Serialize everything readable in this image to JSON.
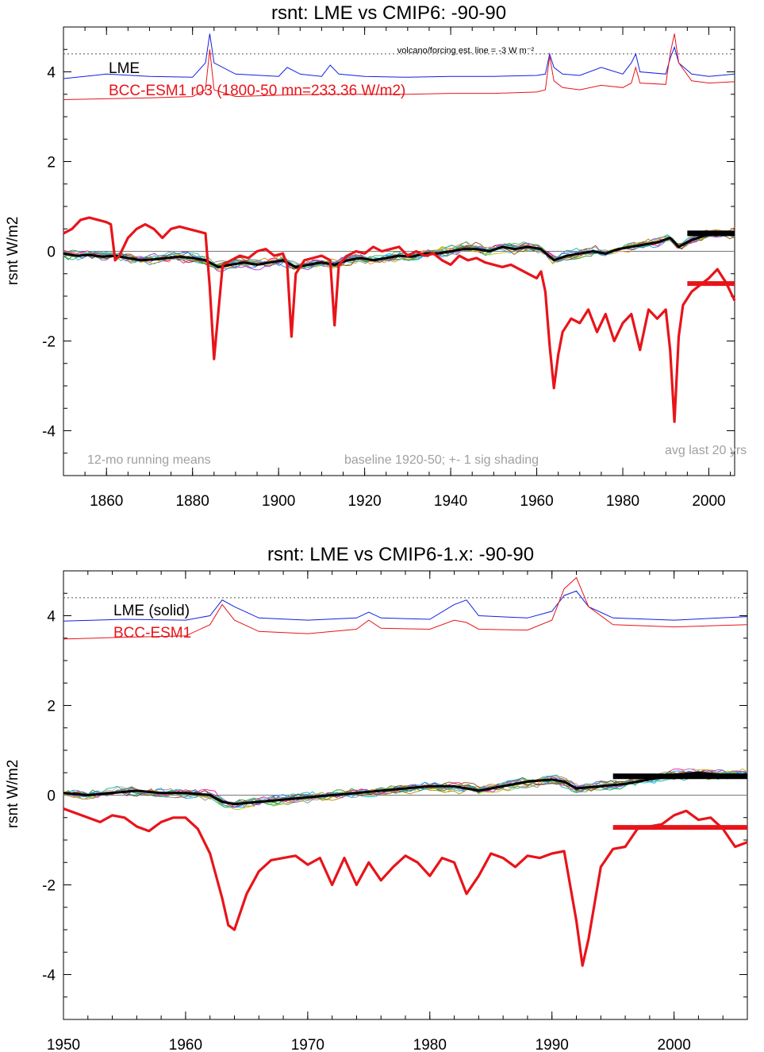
{
  "chart_data": [
    {
      "type": "line",
      "title": "rsnt: LME vs CMIP6: -90-90",
      "ylabel": "rsnt W/m2",
      "xlabel": "",
      "xlim": [
        1850,
        2006
      ],
      "ylim": [
        -5,
        5
      ],
      "xticks": [
        1860,
        1880,
        1900,
        1920,
        1940,
        1960,
        1980,
        2000
      ],
      "yticks": [
        -4,
        -2,
        0,
        2,
        4
      ],
      "grid": false,
      "zero_line": 0,
      "dotted_reference_line": 4.4,
      "legend": [
        {
          "label": "LME",
          "color": "#000000"
        },
        {
          "label": "BCC-ESM1  r03 (1800-50 mn=233.36 W/m2)",
          "color": "#e8141a"
        }
      ],
      "annotations": {
        "forcing_note": "volcano/forcing est.      line = -3 W m⁻²",
        "bottom_left": "12-mo running means",
        "bottom_center": "baseline 1920-50; +- 1 sig shading",
        "bottom_right": "avg last 20 yrs"
      },
      "series": [
        {
          "name": "LME",
          "color": "#000000",
          "x": [
            1850,
            1853,
            1856,
            1859,
            1862,
            1865,
            1868,
            1871,
            1874,
            1877,
            1880,
            1883,
            1886,
            1889,
            1892,
            1895,
            1898,
            1901,
            1904,
            1907,
            1910,
            1913,
            1916,
            1919,
            1922,
            1925,
            1928,
            1931,
            1934,
            1937,
            1940,
            1943,
            1946,
            1949,
            1952,
            1955,
            1958,
            1961,
            1964,
            1967,
            1970,
            1973,
            1976,
            1979,
            1982,
            1985,
            1988,
            1991,
            1993,
            1996,
            1999,
            2002,
            2005
          ],
          "y": [
            -0.05,
            -0.1,
            -0.08,
            -0.12,
            -0.1,
            -0.15,
            -0.2,
            -0.18,
            -0.15,
            -0.12,
            -0.15,
            -0.2,
            -0.35,
            -0.3,
            -0.25,
            -0.3,
            -0.25,
            -0.2,
            -0.35,
            -0.3,
            -0.25,
            -0.3,
            -0.2,
            -0.15,
            -0.2,
            -0.15,
            -0.1,
            -0.12,
            -0.05,
            -0.05,
            0.0,
            0.05,
            0.05,
            0.0,
            0.1,
            0.05,
            0.1,
            0.05,
            -0.2,
            -0.1,
            -0.05,
            0.0,
            -0.05,
            0.05,
            0.1,
            0.15,
            0.2,
            0.3,
            0.1,
            0.25,
            0.35,
            0.4,
            0.4
          ]
        },
        {
          "name": "BCC-ESM1",
          "color": "#e8141a",
          "x": [
            1850,
            1852,
            1854,
            1856,
            1858,
            1860,
            1861,
            1862,
            1863,
            1865,
            1867,
            1869,
            1871,
            1873,
            1875,
            1877,
            1879,
            1881,
            1883,
            1884,
            1885,
            1887,
            1889,
            1891,
            1893,
            1895,
            1897,
            1899,
            1901,
            1902,
            1903,
            1904,
            1906,
            1908,
            1910,
            1912,
            1913,
            1914,
            1916,
            1918,
            1920,
            1922,
            1924,
            1926,
            1928,
            1930,
            1932,
            1934,
            1936,
            1938,
            1940,
            1942,
            1944,
            1946,
            1948,
            1950,
            1952,
            1954,
            1956,
            1958,
            1960,
            1961,
            1962,
            1963,
            1964,
            1965,
            1966,
            1968,
            1970,
            1972,
            1974,
            1976,
            1978,
            1980,
            1982,
            1984,
            1986,
            1988,
            1990,
            1991,
            1992,
            1993,
            1994,
            1996,
            1998,
            2000,
            2002,
            2004,
            2006
          ],
          "y": [
            0.4,
            0.5,
            0.7,
            0.75,
            0.7,
            0.65,
            0.6,
            -0.2,
            -0.1,
            0.3,
            0.5,
            0.6,
            0.5,
            0.3,
            0.5,
            0.55,
            0.5,
            0.45,
            0.4,
            -0.8,
            -2.4,
            -0.3,
            -0.2,
            -0.1,
            -0.15,
            0.0,
            0.05,
            -0.1,
            -0.05,
            -0.3,
            -1.9,
            -0.5,
            -0.2,
            -0.15,
            -0.1,
            -0.2,
            -1.65,
            -0.3,
            -0.1,
            0.0,
            -0.05,
            0.1,
            0.0,
            0.05,
            0.1,
            -0.1,
            0.0,
            -0.1,
            -0.05,
            -0.2,
            -0.3,
            -0.1,
            -0.2,
            -0.15,
            -0.25,
            -0.3,
            -0.35,
            -0.3,
            -0.4,
            -0.5,
            -0.6,
            -0.45,
            -0.9,
            -2.1,
            -3.05,
            -2.3,
            -1.8,
            -1.5,
            -1.6,
            -1.3,
            -1.8,
            -1.4,
            -2.0,
            -1.6,
            -1.4,
            -2.2,
            -1.3,
            -1.5,
            -1.3,
            -2.2,
            -3.8,
            -1.9,
            -1.2,
            -0.9,
            -0.75,
            -0.6,
            -0.4,
            -0.7,
            -1.1
          ]
        }
      ],
      "avg_last_20_yrs": {
        "LME": 0.4,
        "BCC-ESM1": -0.72,
        "x_range": [
          1995,
          2006
        ]
      },
      "forcing_traces": {
        "blue": {
          "x": [
            1850,
            1860,
            1870,
            1880,
            1883,
            1884,
            1885,
            1890,
            1900,
            1902,
            1905,
            1910,
            1912,
            1914,
            1920,
            1930,
            1940,
            1950,
            1960,
            1962,
            1963,
            1964,
            1966,
            1970,
            1975,
            1980,
            1982,
            1983,
            1984,
            1990,
            1991,
            1992,
            1993,
            1996,
            2000,
            2006
          ],
          "y": [
            3.85,
            3.95,
            3.9,
            3.88,
            4.2,
            4.85,
            4.2,
            3.95,
            3.9,
            4.1,
            3.95,
            3.9,
            4.15,
            3.95,
            3.9,
            3.88,
            3.9,
            3.9,
            3.92,
            3.95,
            4.4,
            4.1,
            3.95,
            3.92,
            4.1,
            3.95,
            4.2,
            4.4,
            4.0,
            3.95,
            4.3,
            4.55,
            4.2,
            3.95,
            3.9,
            3.95
          ]
        },
        "red": {
          "x": [
            1850,
            1860,
            1870,
            1880,
            1883,
            1884,
            1885,
            1890,
            1900,
            1910,
            1920,
            1930,
            1940,
            1950,
            1960,
            1962,
            1963,
            1964,
            1966,
            1970,
            1975,
            1980,
            1982,
            1983,
            1984,
            1990,
            1991,
            1992,
            1993,
            1996,
            2000,
            2006
          ],
          "y": [
            3.38,
            3.4,
            3.42,
            3.45,
            3.6,
            4.5,
            3.6,
            3.45,
            3.48,
            3.5,
            3.5,
            3.5,
            3.52,
            3.52,
            3.55,
            3.6,
            4.35,
            3.8,
            3.65,
            3.6,
            3.7,
            3.65,
            3.75,
            4.1,
            3.75,
            3.72,
            4.4,
            4.85,
            4.2,
            3.8,
            3.75,
            3.78
          ]
        }
      }
    },
    {
      "type": "line",
      "title": "rsnt: LME vs CMIP6-1.x: -90-90",
      "ylabel": "rsnt W/m2",
      "xlabel": "",
      "xlim": [
        1950,
        2006
      ],
      "ylim": [
        -5,
        5
      ],
      "xticks": [
        1950,
        1960,
        1970,
        1980,
        1990,
        2000
      ],
      "yticks": [
        -4,
        -2,
        0,
        2,
        4
      ],
      "grid": false,
      "zero_line": 0,
      "dotted_reference_line": 4.4,
      "legend": [
        {
          "label": "LME (solid)",
          "color": "#000000"
        },
        {
          "label": "BCC-ESM1",
          "color": "#e8141a"
        }
      ],
      "series": [
        {
          "name": "LME",
          "color": "#000000",
          "x": [
            1950,
            1952,
            1954,
            1956,
            1958,
            1960,
            1962,
            1963,
            1964,
            1966,
            1968,
            1970,
            1972,
            1974,
            1976,
            1978,
            1980,
            1982,
            1984,
            1986,
            1988,
            1990,
            1991,
            1992,
            1994,
            1996,
            1998,
            2000,
            2002,
            2004,
            2006
          ],
          "y": [
            0.05,
            0.0,
            0.05,
            0.1,
            0.05,
            0.05,
            0.0,
            -0.15,
            -0.2,
            -0.15,
            -0.1,
            -0.05,
            0.0,
            0.05,
            0.1,
            0.15,
            0.2,
            0.2,
            0.1,
            0.2,
            0.3,
            0.35,
            0.3,
            0.15,
            0.2,
            0.25,
            0.35,
            0.45,
            0.5,
            0.45,
            0.45
          ]
        },
        {
          "name": "BCC-ESM1",
          "color": "#e8141a",
          "x": [
            1950,
            1951,
            1952,
            1953,
            1954,
            1955,
            1956,
            1957,
            1958,
            1959,
            1960,
            1961,
            1962,
            1963,
            1963.5,
            1964,
            1965,
            1966,
            1967,
            1968,
            1969,
            1970,
            1971,
            1972,
            1973,
            1974,
            1975,
            1976,
            1977,
            1978,
            1979,
            1980,
            1981,
            1982,
            1983,
            1984,
            1985,
            1986,
            1987,
            1988,
            1989,
            1990,
            1991,
            1992,
            1992.5,
            1993,
            1994,
            1995,
            1996,
            1997,
            1998,
            1999,
            2000,
            2001,
            2002,
            2003,
            2004,
            2005,
            2006
          ],
          "y": [
            -0.3,
            -0.4,
            -0.5,
            -0.6,
            -0.45,
            -0.5,
            -0.7,
            -0.8,
            -0.6,
            -0.5,
            -0.5,
            -0.75,
            -1.3,
            -2.3,
            -2.9,
            -3.0,
            -2.2,
            -1.7,
            -1.45,
            -1.4,
            -1.35,
            -1.55,
            -1.4,
            -2.0,
            -1.4,
            -2.0,
            -1.5,
            -1.9,
            -1.6,
            -1.35,
            -1.5,
            -1.8,
            -1.4,
            -1.5,
            -2.2,
            -1.8,
            -1.3,
            -1.4,
            -1.6,
            -1.35,
            -1.4,
            -1.3,
            -1.25,
            -2.8,
            -3.8,
            -3.2,
            -1.6,
            -1.2,
            -1.15,
            -0.75,
            -0.7,
            -0.65,
            -0.45,
            -0.35,
            -0.55,
            -0.5,
            -0.75,
            -1.15,
            -1.05
          ]
        }
      ],
      "avg_last_20_yrs": {
        "LME": 0.42,
        "BCC-ESM1": -0.72,
        "x_range": [
          1995,
          2006
        ]
      },
      "forcing_traces": {
        "blue": {
          "x": [
            1950,
            1955,
            1960,
            1962,
            1963,
            1964,
            1966,
            1970,
            1974,
            1975,
            1976,
            1980,
            1982,
            1983,
            1984,
            1988,
            1990,
            1991,
            1992,
            1993,
            1995,
            2000,
            2006
          ],
          "y": [
            3.88,
            3.92,
            3.9,
            4.0,
            4.35,
            4.2,
            3.95,
            3.9,
            3.95,
            4.08,
            3.95,
            3.92,
            4.25,
            4.35,
            4.0,
            3.95,
            4.1,
            4.45,
            4.55,
            4.2,
            3.95,
            3.9,
            3.98
          ]
        },
        "red": {
          "x": [
            1950,
            1955,
            1960,
            1962,
            1963,
            1964,
            1966,
            1970,
            1974,
            1975,
            1976,
            1980,
            1982,
            1983,
            1984,
            1988,
            1990,
            1991,
            1992,
            1993,
            1995,
            2000,
            2006
          ],
          "y": [
            3.48,
            3.52,
            3.55,
            3.8,
            4.25,
            3.9,
            3.65,
            3.6,
            3.7,
            3.9,
            3.72,
            3.7,
            3.9,
            3.85,
            3.7,
            3.68,
            3.9,
            4.6,
            4.85,
            4.2,
            3.8,
            3.75,
            3.8
          ]
        }
      }
    }
  ]
}
